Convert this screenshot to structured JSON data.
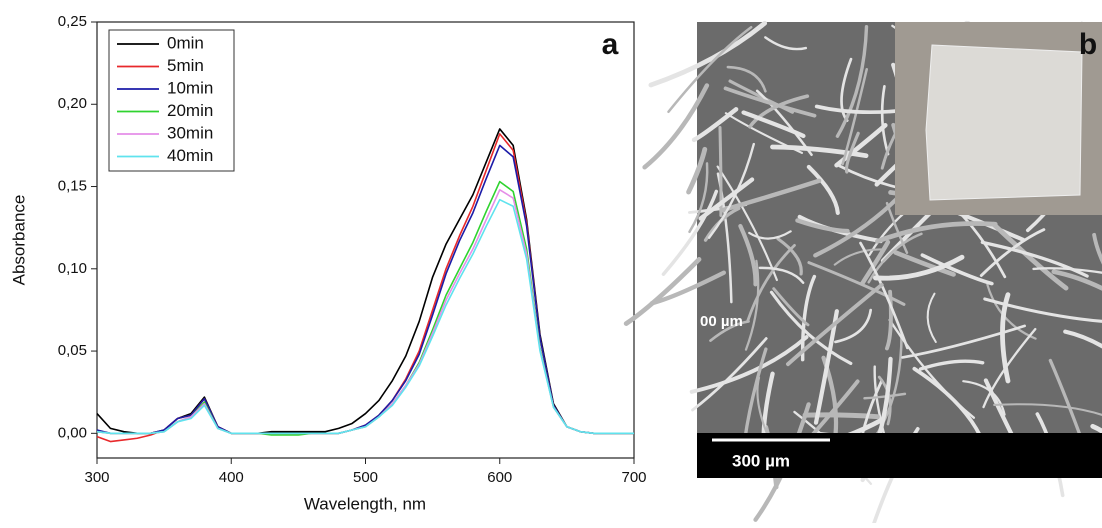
{
  "chart_data": {
    "type": "line",
    "panel_label": "a",
    "xlabel": "Wavelength, nm",
    "ylabel": "Absorbance",
    "x": [
      300,
      310,
      320,
      330,
      340,
      350,
      360,
      370,
      380,
      390,
      400,
      410,
      420,
      430,
      440,
      450,
      460,
      470,
      480,
      490,
      500,
      510,
      520,
      530,
      540,
      550,
      560,
      570,
      580,
      590,
      600,
      610,
      620,
      630,
      640,
      650,
      660,
      670,
      680,
      690,
      700
    ],
    "series": [
      {
        "name": "0min",
        "color": "#000000",
        "values": [
          0.012,
          0.003,
          0.001,
          0,
          0,
          0.002,
          0.009,
          0.012,
          0.022,
          0.004,
          0,
          0,
          0,
          0.001,
          0.001,
          0.001,
          0.001,
          0.001,
          0.003,
          0.006,
          0.012,
          0.02,
          0.032,
          0.047,
          0.068,
          0.095,
          0.115,
          0.13,
          0.145,
          0.165,
          0.185,
          0.175,
          0.13,
          0.06,
          0.018,
          0.004,
          0.001,
          0,
          0,
          0,
          0
        ]
      },
      {
        "name": "5min",
        "color": "#e8292b",
        "values": [
          -0.002,
          -0.005,
          -0.004,
          -0.003,
          -0.001,
          0.002,
          0.009,
          0.011,
          0.021,
          0.004,
          0,
          0,
          0,
          0,
          0,
          0,
          0,
          0,
          0,
          0.002,
          0.005,
          0.011,
          0.02,
          0.033,
          0.05,
          0.075,
          0.1,
          0.12,
          0.138,
          0.16,
          0.182,
          0.172,
          0.128,
          0.058,
          0.017,
          0.004,
          0.001,
          0,
          0,
          0,
          0
        ]
      },
      {
        "name": "10min",
        "color": "#1c1ca8",
        "values": [
          0.002,
          0,
          0,
          0,
          0,
          0.002,
          0.009,
          0.011,
          0.021,
          0.004,
          0,
          0,
          0,
          0,
          0,
          0,
          0,
          0,
          0,
          0.002,
          0.005,
          0.011,
          0.02,
          0.032,
          0.048,
          0.072,
          0.097,
          0.117,
          0.134,
          0.155,
          0.175,
          0.168,
          0.126,
          0.058,
          0.017,
          0.004,
          0.001,
          0,
          0,
          0,
          0
        ]
      },
      {
        "name": "20min",
        "color": "#2fd32f",
        "values": [
          0.001,
          0,
          0,
          0,
          0,
          0.001,
          0.007,
          0.01,
          0.019,
          0.003,
          0,
          0,
          0,
          -0.001,
          -0.001,
          -0.001,
          0,
          0,
          0,
          0.002,
          0.004,
          0.01,
          0.018,
          0.029,
          0.043,
          0.063,
          0.084,
          0.1,
          0.116,
          0.135,
          0.153,
          0.147,
          0.112,
          0.052,
          0.016,
          0.004,
          0.001,
          0,
          0,
          0,
          0
        ]
      },
      {
        "name": "30min",
        "color": "#e58ee8",
        "values": [
          0.001,
          0,
          0,
          0,
          0,
          0.001,
          0.007,
          0.01,
          0.018,
          0.003,
          0,
          0,
          0,
          0,
          0,
          0,
          0,
          0,
          0,
          0.002,
          0.004,
          0.01,
          0.018,
          0.029,
          0.042,
          0.061,
          0.081,
          0.097,
          0.112,
          0.13,
          0.148,
          0.143,
          0.109,
          0.051,
          0.016,
          0.004,
          0.001,
          0,
          0,
          0,
          0
        ]
      },
      {
        "name": "40min",
        "color": "#5fe3ee",
        "values": [
          0.001,
          0,
          0,
          0,
          0,
          0.001,
          0.007,
          0.009,
          0.017,
          0.003,
          0,
          0,
          0,
          0,
          0,
          0,
          0,
          0,
          0,
          0.002,
          0.004,
          0.01,
          0.017,
          0.028,
          0.041,
          0.059,
          0.078,
          0.094,
          0.109,
          0.126,
          0.142,
          0.138,
          0.106,
          0.05,
          0.016,
          0.004,
          0.001,
          0,
          0,
          0,
          0
        ]
      }
    ],
    "xlim": [
      300,
      700
    ],
    "xticks": [
      300,
      400,
      500,
      600,
      700
    ],
    "ylim": [
      -0.015,
      0.25
    ],
    "yticks": [
      {
        "value": 0,
        "label": "0,00"
      },
      {
        "value": 0.05,
        "label": "0,05"
      },
      {
        "value": 0.1,
        "label": "0,10"
      },
      {
        "value": 0.15,
        "label": "0,15"
      },
      {
        "value": 0.2,
        "label": "0,20"
      },
      {
        "value": 0.25,
        "label": "0,25"
      }
    ],
    "legend": "upper left",
    "grid": false
  },
  "panel_b": {
    "label": "b",
    "scale_bar": "300 µm",
    "partial_label": "00 µm"
  }
}
